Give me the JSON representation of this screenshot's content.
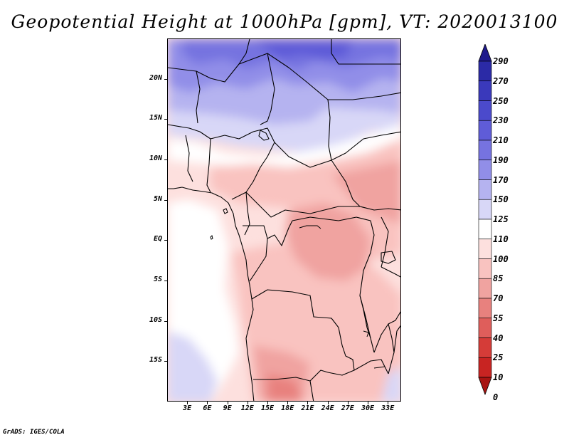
{
  "title": "Geopotential Height at 1000hPa [gpm], VT: 2020013100",
  "credit": "GrADS: IGES/COLA",
  "map": {
    "region": "Central Africa",
    "lon_range": [
      0,
      35
    ],
    "lat_range": [
      -20,
      25
    ],
    "lat_ticks": [
      "20N",
      "15N",
      "10N",
      "5N",
      "EQ",
      "5S",
      "10S",
      "15S"
    ],
    "lat_values": [
      20,
      15,
      10,
      5,
      0,
      -5,
      -10,
      -15
    ],
    "lon_ticks": [
      "3E",
      "6E",
      "9E",
      "12E",
      "15E",
      "18E",
      "21E",
      "24E",
      "27E",
      "30E",
      "33E"
    ],
    "lon_values": [
      3,
      6,
      9,
      12,
      15,
      18,
      21,
      24,
      27,
      30,
      33
    ]
  },
  "colorbar": {
    "levels": [
      "290",
      "270",
      "250",
      "230",
      "210",
      "190",
      "170",
      "150",
      "125",
      "110",
      "100",
      "85",
      "70",
      "55",
      "40",
      "25",
      "10",
      "0"
    ],
    "colors": [
      "#1f1a8c",
      "#2b2aa6",
      "#3a39bb",
      "#4b4acc",
      "#5f5cd8",
      "#7673e0",
      "#918ee8",
      "#b5b3f0",
      "#d8d7f7",
      "#ffffff",
      "#fde0de",
      "#f9c3c0",
      "#f0a3a0",
      "#e8817e",
      "#df5e5b",
      "#d53c38",
      "#c82422",
      "#a81412"
    ]
  }
}
